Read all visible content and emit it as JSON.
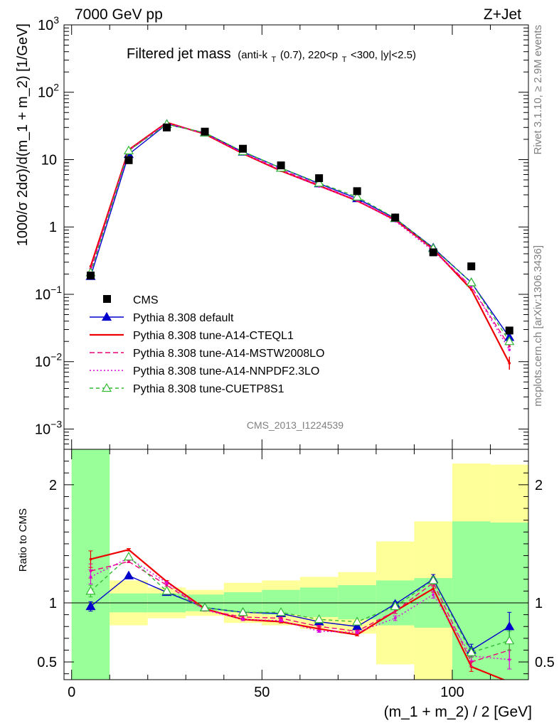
{
  "header": {
    "left": "7000 GeV pp",
    "right": "Z+Jet"
  },
  "plot_title": {
    "main": "Filtered jet mass",
    "sub_prefix": "(anti-k",
    "sub_k_index": "T",
    "sub_mid": "(0.7), 220<p",
    "sub_p_index": "T",
    "sub_suffix": "<300, |y|<2.5)"
  },
  "side_labels": {
    "rivet": "Rivet 3.1.10, ≥ 2.9M events",
    "mcplots": "mcplots.cern.ch [arXiv:1306.3436]"
  },
  "analysis_id": "CMS_2013_I1224539",
  "colors": {
    "cms": "#000000",
    "default": "#0000cc",
    "cteql1": "#ee0000",
    "mstw": "#ee0077",
    "nnpdf": "#dd00dd",
    "cuetp8s1": "#33bb33",
    "band_inner": "#99ff99",
    "band_outer": "#ffff99"
  },
  "chart_data": [
    {
      "type": "line",
      "ylabel": "1000/σ 2dσ)/d(m_1 + m_2) [1/GeV]",
      "yscale": "log",
      "ylim": [
        0.0005,
        1000
      ],
      "xlim": [
        -2,
        120
      ],
      "y_ticks": [
        {
          "v": 0.001,
          "base": "10",
          "exp": "−3"
        },
        {
          "v": 0.01,
          "base": "10",
          "exp": "−2"
        },
        {
          "v": 0.1,
          "base": "10",
          "exp": "−1"
        },
        {
          "v": 1,
          "base": "1",
          "exp": ""
        },
        {
          "v": 10,
          "base": "10",
          "exp": ""
        },
        {
          "v": 100,
          "base": "10",
          "exp": "2"
        },
        {
          "v": 1000,
          "base": "10",
          "exp": "3"
        }
      ],
      "x": [
        5,
        15,
        25,
        35,
        45,
        55,
        65,
        75,
        85,
        95,
        105,
        115
      ],
      "data": {
        "name": "CMS",
        "values": [
          0.19,
          9.8,
          30,
          26,
          14.5,
          8.2,
          5.3,
          3.4,
          1.38,
          0.42,
          0.26,
          0.029
        ]
      },
      "series": [
        {
          "name": "Pythia 8.308 default",
          "key": "default",
          "marker": "filled-triangle",
          "dash": "",
          "values": [
            0.185,
            12.0,
            33.5,
            25.0,
            13.0,
            7.5,
            4.4,
            2.65,
            1.34,
            0.49,
            0.15,
            0.023
          ]
        },
        {
          "name": "Pythia 8.308 tune-A14-CTEQL1",
          "key": "cteql1",
          "marker": "none",
          "dash": "",
          "values": [
            0.26,
            14.0,
            35.5,
            24.0,
            12.3,
            6.8,
            4.1,
            2.45,
            1.27,
            0.47,
            0.118,
            0.0095
          ]
        },
        {
          "name": "Pythia 8.308 tune-A14-MSTW2008LO",
          "key": "mstw",
          "marker": "none",
          "dash": "7,4",
          "values": [
            0.24,
            13.5,
            35.0,
            24.5,
            12.5,
            7.1,
            4.2,
            2.5,
            1.28,
            0.46,
            0.13,
            0.017
          ]
        },
        {
          "name": "Pythia 8.308 tune-A14-NNPDF2.3LO",
          "key": "nnpdf",
          "marker": "none",
          "dash": "2,3",
          "values": [
            0.22,
            13.8,
            34.5,
            24.2,
            12.4,
            6.9,
            4.0,
            2.5,
            1.22,
            0.44,
            0.13,
            0.015
          ]
        },
        {
          "name": "Pythia 8.308 tune-CUETP8S1",
          "key": "cuetp8s1",
          "marker": "open-triangle",
          "dash": "5,4",
          "values": [
            0.21,
            13.6,
            33.5,
            25.0,
            13.2,
            7.5,
            4.5,
            2.8,
            1.35,
            0.48,
            0.15,
            0.02
          ]
        }
      ]
    },
    {
      "type": "line",
      "ylabel": "Ratio to CMS",
      "ylim": [
        0.35,
        2.3
      ],
      "xlim": [
        -2,
        120
      ],
      "xlabel": "(m_1 + m_2) / 2 [GeV]",
      "y_ticks": [
        {
          "v": 0.5,
          "label": "0.5"
        },
        {
          "v": 1,
          "label": "1"
        },
        {
          "v": 2,
          "label": "2"
        }
      ],
      "x_ticks": [
        {
          "v": 0,
          "label": "0"
        },
        {
          "v": 50,
          "label": "50"
        },
        {
          "v": 100,
          "label": "100"
        }
      ],
      "x": [
        5,
        15,
        25,
        35,
        45,
        55,
        65,
        75,
        85,
        95,
        105,
        115
      ],
      "uncertainty_bands": [
        {
          "x0": 0,
          "x1": 10,
          "inner": [
            0.35,
            2.3
          ],
          "outer": [
            0.35,
            2.3
          ]
        },
        {
          "x0": 10,
          "x1": 20,
          "inner": [
            0.92,
            1.08
          ],
          "outer": [
            0.81,
            1.19
          ]
        },
        {
          "x0": 20,
          "x1": 30,
          "inner": [
            0.92,
            1.08
          ],
          "outer": [
            0.87,
            1.13
          ]
        },
        {
          "x0": 30,
          "x1": 40,
          "inner": [
            0.93,
            1.07
          ],
          "outer": [
            0.89,
            1.11
          ]
        },
        {
          "x0": 40,
          "x1": 50,
          "inner": [
            0.92,
            1.09
          ],
          "outer": [
            0.83,
            1.17
          ]
        },
        {
          "x0": 50,
          "x1": 60,
          "inner": [
            0.9,
            1.11
          ],
          "outer": [
            0.81,
            1.19
          ]
        },
        {
          "x0": 60,
          "x1": 70,
          "inner": [
            0.88,
            1.13
          ],
          "outer": [
            0.78,
            1.22
          ]
        },
        {
          "x0": 70,
          "x1": 80,
          "inner": [
            0.86,
            1.15
          ],
          "outer": [
            0.74,
            1.26
          ]
        },
        {
          "x0": 80,
          "x1": 90,
          "inner": [
            0.81,
            1.19
          ],
          "outer": [
            0.48,
            1.52
          ]
        },
        {
          "x0": 90,
          "x1": 100,
          "inner": [
            0.79,
            1.21
          ],
          "outer": [
            0.35,
            1.69
          ]
        },
        {
          "x0": 100,
          "x1": 110,
          "inner": [
            0.35,
            1.69
          ],
          "outer": [
            0.35,
            2.18
          ]
        },
        {
          "x0": 110,
          "x1": 120,
          "inner": [
            0.35,
            1.68
          ],
          "outer": [
            0.35,
            2.17
          ]
        }
      ],
      "series": [
        {
          "name": "Pythia 8.308 default",
          "key": "default",
          "marker": "filled-triangle",
          "dash": "",
          "values": [
            0.97,
            1.23,
            1.09,
            0.96,
            0.92,
            0.91,
            0.84,
            0.8,
            0.99,
            1.2,
            0.6,
            0.8
          ],
          "err": [
            0.04,
            0.01,
            0.01,
            0.01,
            0.01,
            0.01,
            0.01,
            0.01,
            0.02,
            0.04,
            0.05,
            0.12
          ]
        },
        {
          "name": "Pythia 8.308 tune-A14-CTEQL1",
          "key": "cteql1",
          "marker": "none",
          "dash": "",
          "values": [
            1.37,
            1.45,
            1.18,
            0.95,
            0.86,
            0.84,
            0.78,
            0.73,
            0.93,
            1.12,
            0.46,
            0.33
          ],
          "err": [
            0.07,
            0.01,
            0.01,
            0.01,
            0.01,
            0.01,
            0.01,
            0.01,
            0.02,
            0.03,
            0.04,
            0.05
          ]
        },
        {
          "name": "Pythia 8.308 tune-A14-MSTW2008LO",
          "key": "mstw",
          "marker": "none",
          "dash": "7,4",
          "values": [
            1.27,
            1.35,
            1.15,
            0.94,
            0.88,
            0.87,
            0.8,
            0.76,
            0.93,
            1.17,
            0.5,
            0.6
          ],
          "err": [
            0.06,
            0.01,
            0.01,
            0.01,
            0.01,
            0.01,
            0.01,
            0.01,
            0.02,
            0.03,
            0.04,
            0.08
          ]
        },
        {
          "name": "Pythia 8.308 tune-A14-NNPDF2.3LO",
          "key": "nnpdf",
          "marker": "none",
          "dash": "2,3",
          "values": [
            1.22,
            1.38,
            1.17,
            0.94,
            0.86,
            0.85,
            0.76,
            0.75,
            0.87,
            1.07,
            0.55,
            0.52
          ],
          "err": [
            0.06,
            0.01,
            0.01,
            0.01,
            0.01,
            0.01,
            0.01,
            0.01,
            0.02,
            0.03,
            0.04,
            0.08
          ]
        },
        {
          "name": "Pythia 8.308 tune-CUETP8S1",
          "key": "cuetp8s1",
          "marker": "open-triangle",
          "dash": "5,4",
          "values": [
            1.1,
            1.39,
            1.1,
            0.96,
            0.92,
            0.92,
            0.86,
            0.84,
            0.97,
            1.19,
            0.58,
            0.68
          ],
          "err": [
            0.05,
            0.01,
            0.01,
            0.01,
            0.01,
            0.01,
            0.01,
            0.01,
            0.02,
            0.03,
            0.04,
            0.08
          ]
        }
      ]
    }
  ]
}
